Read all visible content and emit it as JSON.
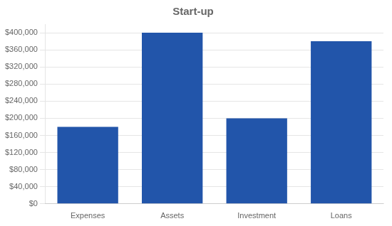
{
  "chart_data": {
    "type": "bar",
    "title": "Start-up",
    "categories": [
      "Expenses",
      "Assets",
      "Investment",
      "Loans"
    ],
    "values": [
      180000,
      400000,
      200000,
      380000
    ],
    "color": "#2255AA",
    "ylim": [
      0,
      420000
    ],
    "yticks": [
      {
        "value": 0,
        "label": "$0"
      },
      {
        "value": 40000,
        "label": "$40,000"
      },
      {
        "value": 80000,
        "label": "$80,000"
      },
      {
        "value": 120000,
        "label": "$120,000"
      },
      {
        "value": 160000,
        "label": "$160,000"
      },
      {
        "value": 200000,
        "label": "$200,000"
      },
      {
        "value": 240000,
        "label": "$240,000"
      },
      {
        "value": 280000,
        "label": "$280,000"
      },
      {
        "value": 320000,
        "label": "$320,000"
      },
      {
        "value": 360000,
        "label": "$360,000"
      },
      {
        "value": 400000,
        "label": "$400,000"
      }
    ],
    "grid": true
  }
}
